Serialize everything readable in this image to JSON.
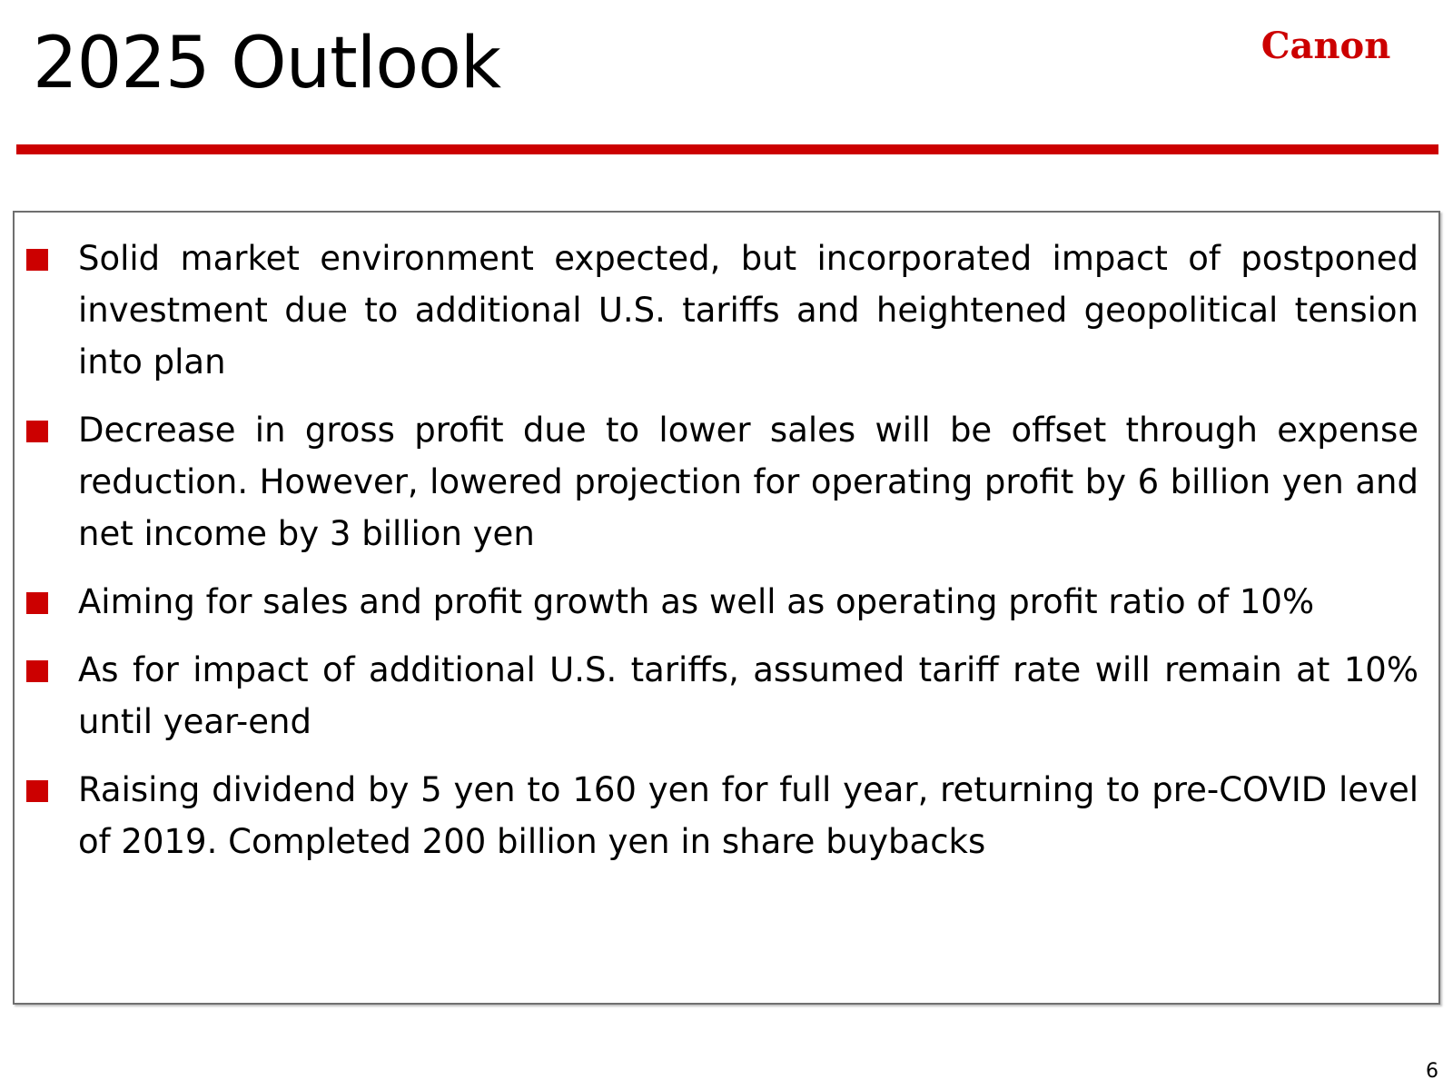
{
  "slide": {
    "title": "2025 Outlook",
    "logo_text": "Canon",
    "page_number": "6"
  },
  "colors": {
    "accent": "#cc0000",
    "text": "#000000",
    "box_border": "#6f6f6f"
  },
  "bullets": [
    {
      "text": "Solid market environment expected, but incorporated impact of postponed investment due to additional U.S. tariffs and heightened geopolitical tension into plan"
    },
    {
      "text": "Decrease in gross profit due to lower sales will be offset through expense reduction. However, lowered projection for operating profit by 6 billion yen and net income by 3 billion yen"
    },
    {
      "text": "Aiming for sales and profit growth as well as operating profit ratio of 10%"
    },
    {
      "text": "As for impact of additional U.S. tariffs, assumed tariff rate will remain at 10% until year-end"
    },
    {
      "text": "Raising dividend by 5 yen to 160 yen for full year, returning to pre-COVID level of 2019. Completed 200 billion yen in share buybacks"
    }
  ]
}
